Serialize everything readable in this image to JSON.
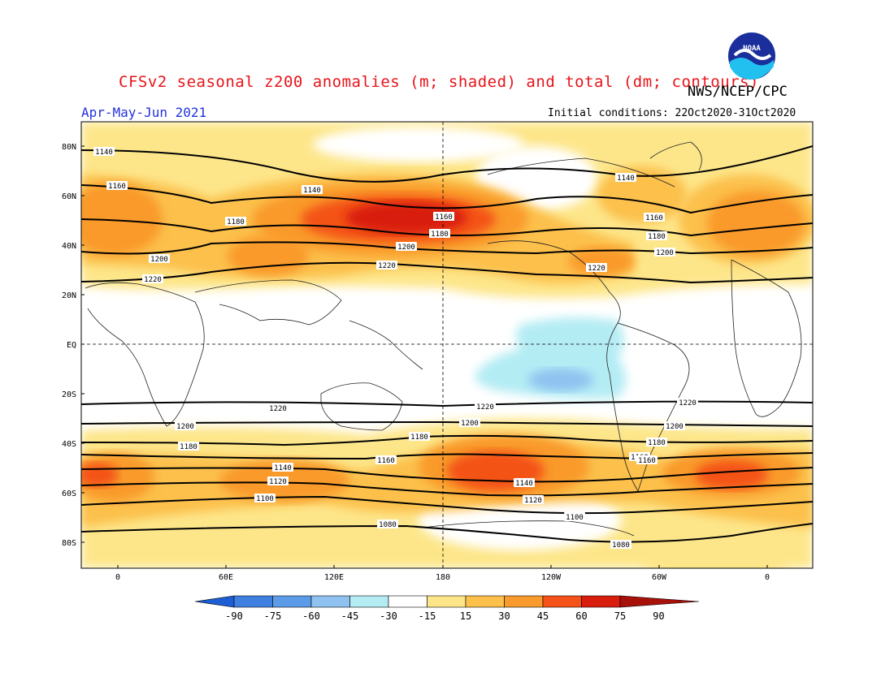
{
  "header": {
    "title": "CFSv2 seasonal z200 anomalies (m; shaded) and total (dm; contours)",
    "agency": "NWS/NCEP/CPC",
    "season": "Apr-May-Jun 2021",
    "initial_conditions": "Initial conditions: 22Oct2020-31Oct2020",
    "logo_text": "NOAA"
  },
  "map": {
    "lat_labels": [
      "80N",
      "60N",
      "40N",
      "20N",
      "EQ",
      "20S",
      "40S",
      "60S",
      "80S"
    ],
    "lon_labels": [
      "0",
      "60E",
      "120E",
      "180",
      "120W",
      "60W",
      "0"
    ],
    "contour_labels": [
      "1140",
      "1160",
      "1180",
      "1200",
      "1220",
      "1140",
      "1160",
      "1180",
      "1200",
      "1220",
      "1140",
      "1160",
      "1180",
      "1200",
      "1220",
      "1220",
      "1200",
      "1180",
      "1160",
      "1140",
      "1120",
      "1100",
      "1080",
      "1220",
      "1200",
      "1180",
      "1160",
      "1140",
      "1120",
      "1100",
      "1220",
      "1200",
      "1180",
      "1160",
      "1080"
    ]
  },
  "colorbar": {
    "ticks": [
      "-90",
      "-75",
      "-60",
      "-45",
      "-30",
      "-15",
      "15",
      "30",
      "45",
      "60",
      "75",
      "90"
    ],
    "colors": [
      "#2a62d6",
      "#3f7fe0",
      "#5c9be8",
      "#8fc2f0",
      "#b4ecf4",
      "#ffffff",
      "#fde68a",
      "#fcc04b",
      "#f99a2c",
      "#f45218",
      "#d81d0d",
      "#a8100a"
    ]
  }
}
